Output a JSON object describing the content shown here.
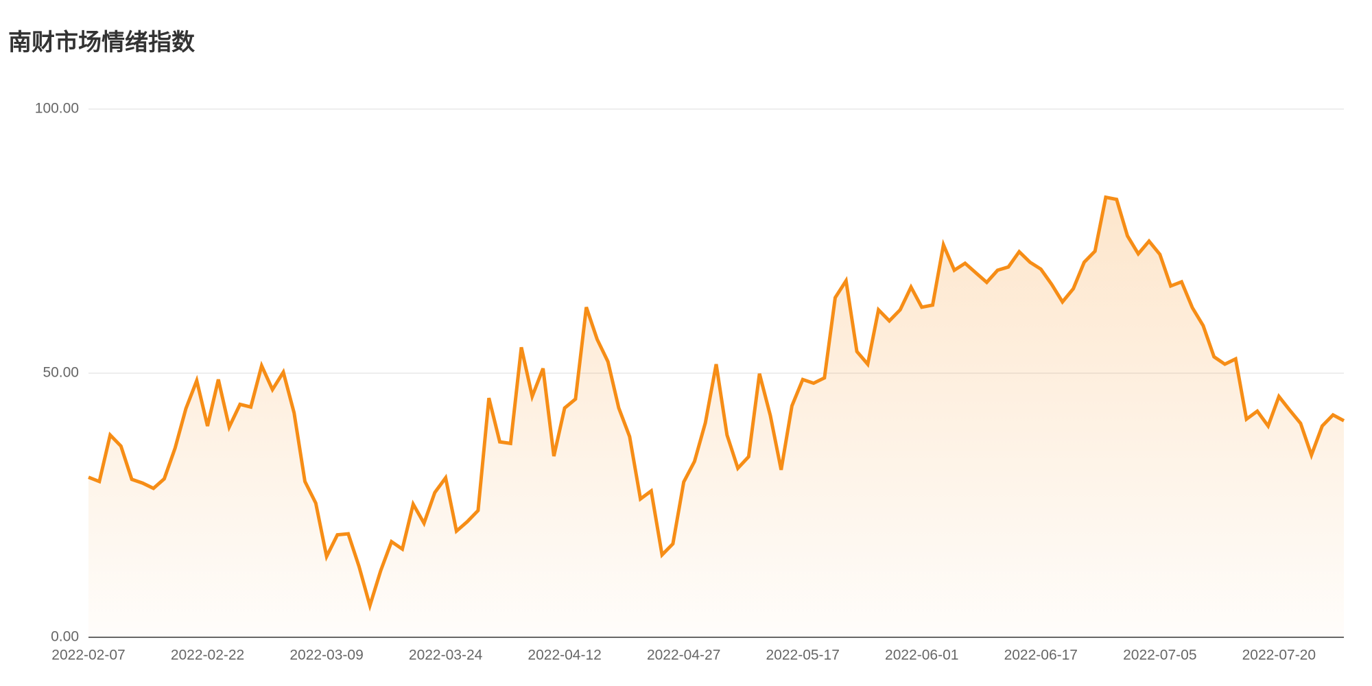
{
  "chart_data": {
    "type": "line",
    "title": "南财市场情绪指数",
    "categories": [
      "2022-02-07",
      null,
      null,
      null,
      null,
      null,
      null,
      null,
      null,
      null,
      null,
      "2022-02-22",
      null,
      null,
      null,
      null,
      null,
      null,
      null,
      null,
      null,
      null,
      "2022-03-09",
      null,
      null,
      null,
      null,
      null,
      null,
      null,
      null,
      null,
      null,
      "2022-03-24",
      null,
      null,
      null,
      null,
      null,
      null,
      null,
      null,
      null,
      null,
      "2022-04-12",
      null,
      null,
      null,
      null,
      null,
      null,
      null,
      null,
      null,
      null,
      "2022-04-27",
      null,
      null,
      null,
      null,
      null,
      null,
      null,
      null,
      null,
      null,
      "2022-05-17",
      null,
      null,
      null,
      null,
      null,
      null,
      null,
      null,
      null,
      null,
      "2022-06-01",
      null,
      null,
      null,
      null,
      null,
      null,
      null,
      null,
      null,
      null,
      "2022-06-17",
      null,
      null,
      null,
      null,
      null,
      null,
      null,
      null,
      null,
      null,
      "2022-07-05",
      null,
      null,
      null,
      null,
      null,
      null,
      null,
      null,
      null,
      null,
      "2022-07-20",
      null,
      null,
      null,
      null,
      null,
      null
    ],
    "series": [
      {
        "name": "南财市场情绪指数",
        "color": "#f68d16",
        "values": [
          30.3,
          29.5,
          38.3,
          36.2,
          29.9,
          29.2,
          28.2,
          30.0,
          35.8,
          43.3,
          48.6,
          40.0,
          48.8,
          39.8,
          44.1,
          43.6,
          51.4,
          46.9,
          50.2,
          42.5,
          29.5,
          25.4,
          15.3,
          19.4,
          19.6,
          13.4,
          6.0,
          12.6,
          18.1,
          16.7,
          25.2,
          21.6,
          27.4,
          30.2,
          20.1,
          21.9,
          24.0,
          45.3,
          37.0,
          36.7,
          54.9,
          45.6,
          50.9,
          34.3,
          43.4,
          45.1,
          62.5,
          56.4,
          52.2,
          43.4,
          38.0,
          26.2,
          27.7,
          15.6,
          17.7,
          29.4,
          33.3,
          40.6,
          51.7,
          38.3,
          32.0,
          34.2,
          49.9,
          42.0,
          31.7,
          43.8,
          48.8,
          48.1,
          49.1,
          64.3,
          67.5,
          54.1,
          51.7,
          62.0,
          59.9,
          62.0,
          66.3,
          62.5,
          62.9,
          74.3,
          69.5,
          70.8,
          69.0,
          67.2,
          69.5,
          70.1,
          73.0,
          71.0,
          69.7,
          66.8,
          63.5,
          66.0,
          71.0,
          73.1,
          83.3,
          82.9,
          76.0,
          72.6,
          75.0,
          72.5,
          66.5,
          67.3,
          62.4,
          59.0,
          53.1,
          51.7,
          52.7,
          41.3,
          42.8,
          40.0,
          45.6,
          43.0,
          40.5,
          34.5,
          40.0,
          42.1,
          41.0
        ]
      }
    ],
    "ylim": [
      0,
      100
    ],
    "yticks": [
      {
        "value": 0,
        "label": "0.00"
      },
      {
        "value": 50,
        "label": "50.00"
      },
      {
        "value": 100,
        "label": "100.00"
      }
    ],
    "grid": true,
    "area": true
  }
}
